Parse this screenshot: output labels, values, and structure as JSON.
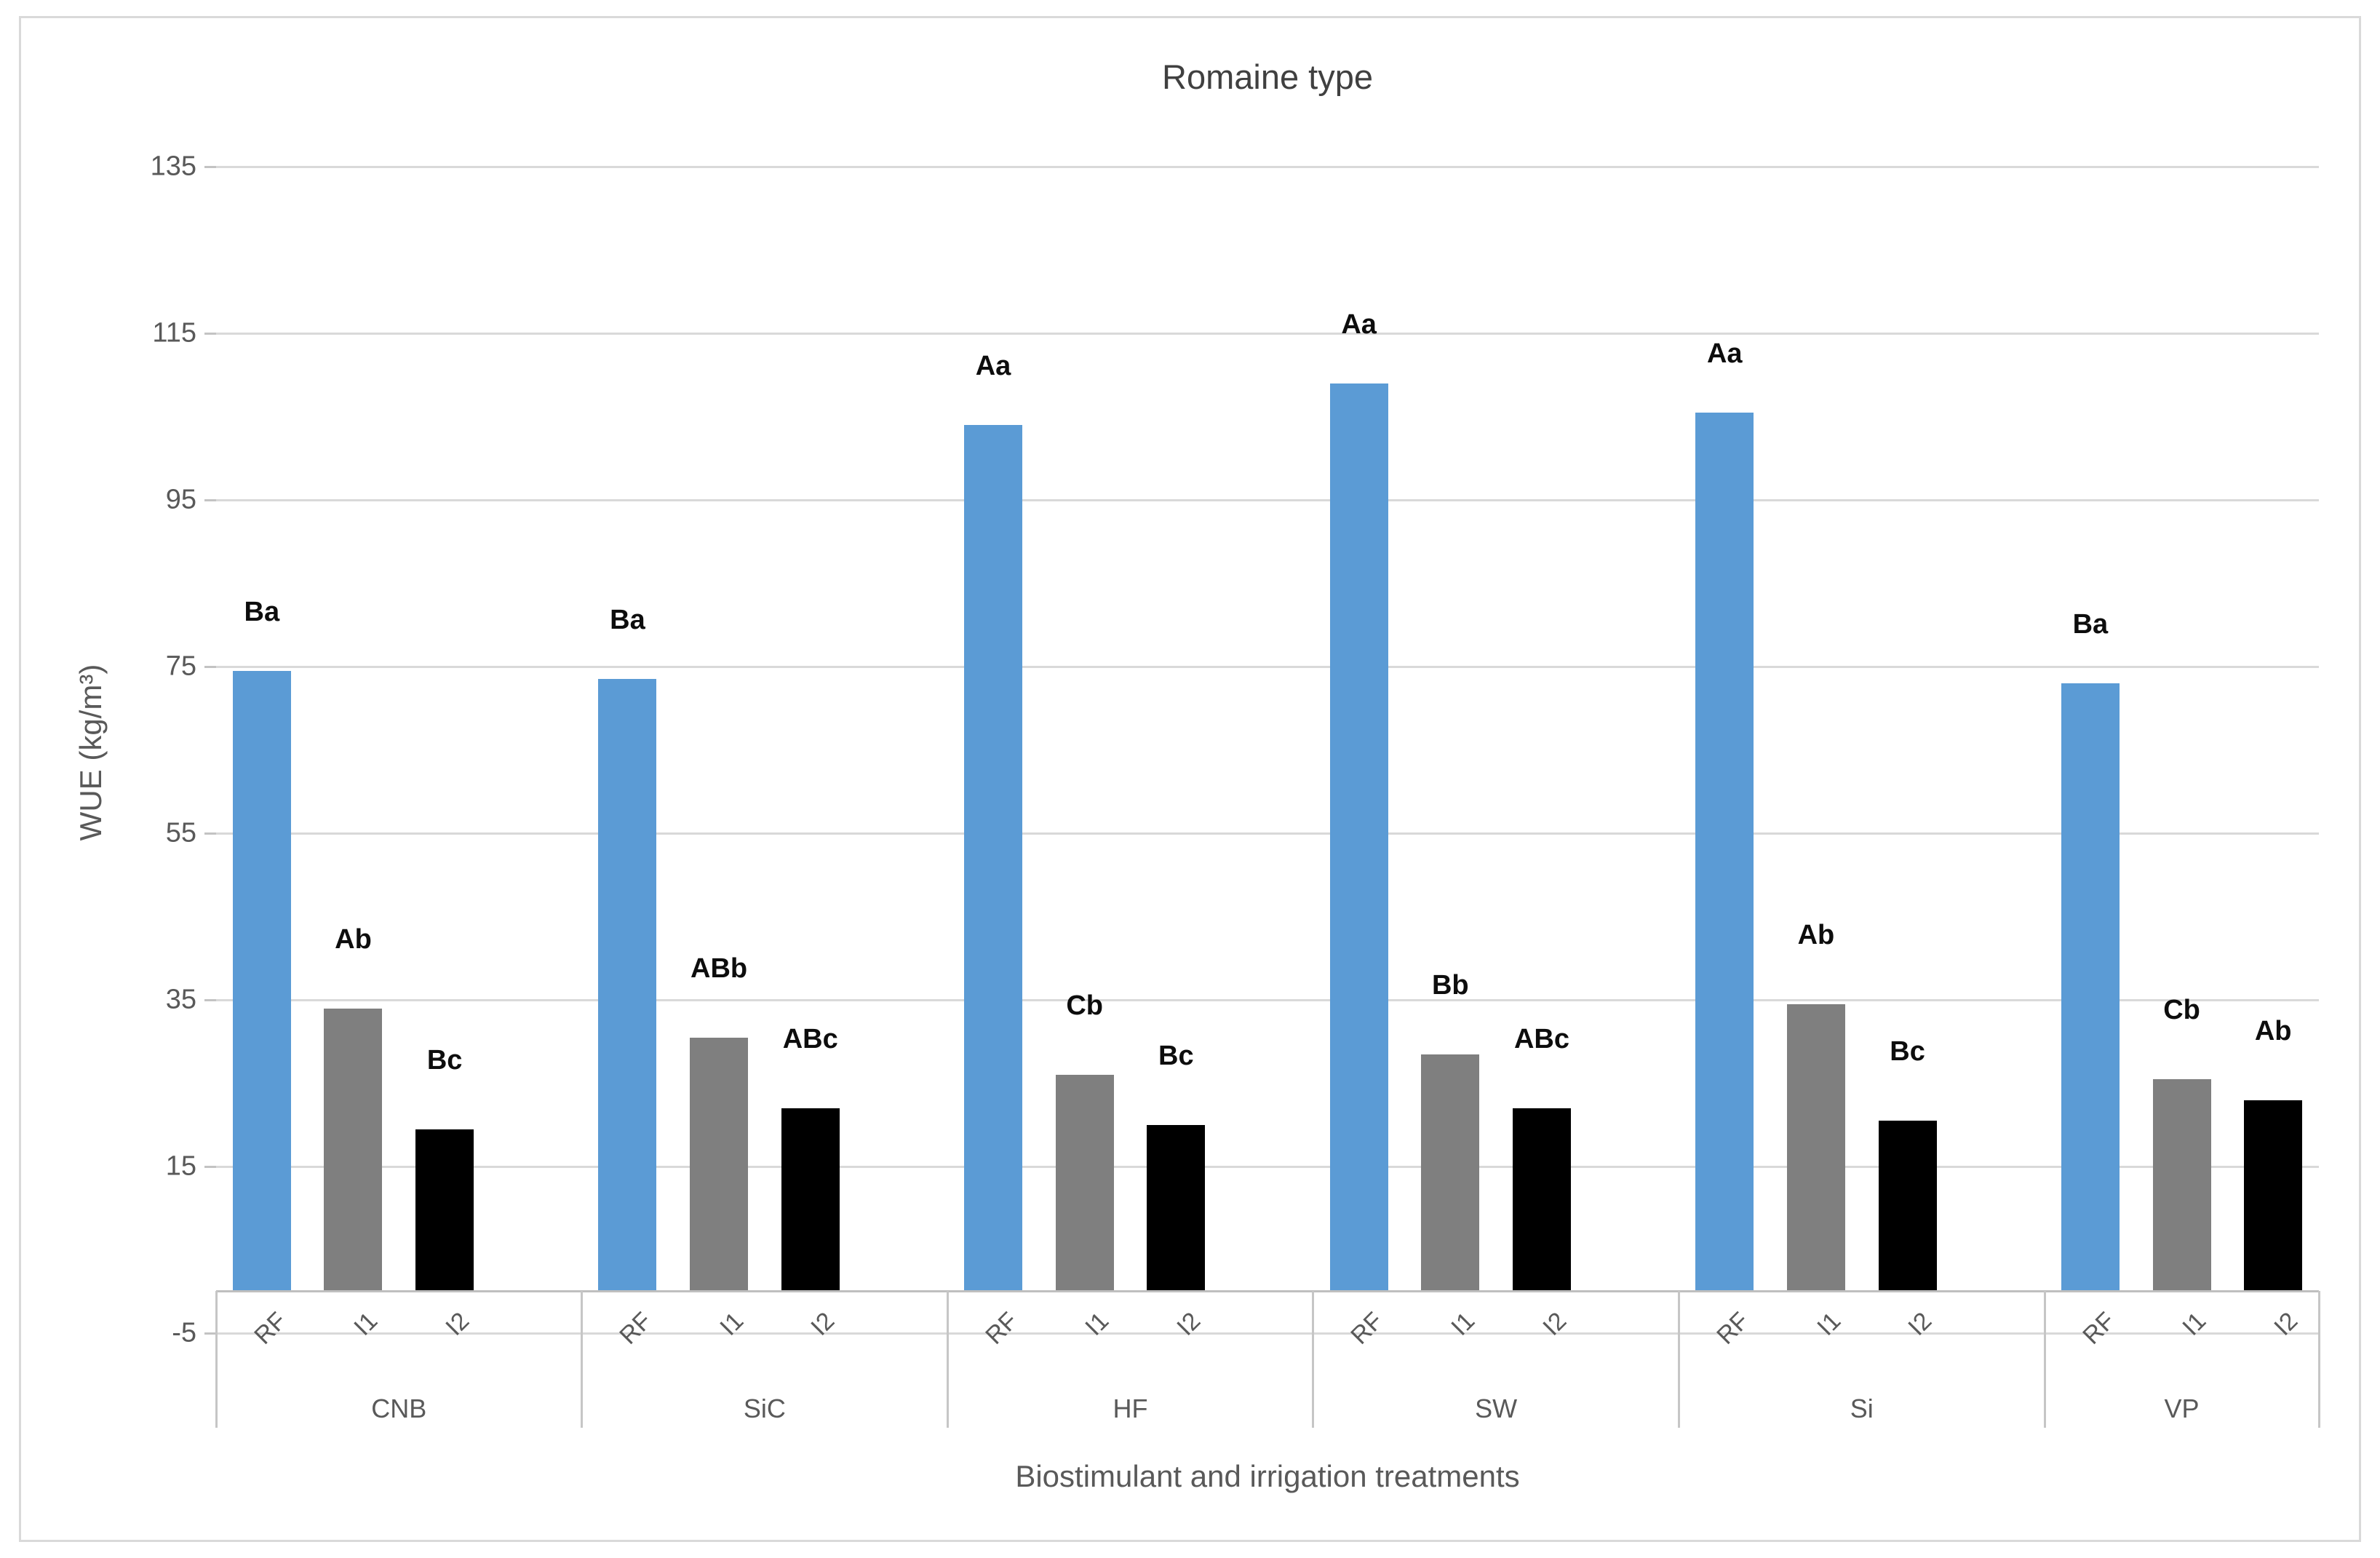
{
  "chart_data": {
    "type": "bar",
    "title": "Romaine type",
    "xlabel": "Biostimulant and irrigation treatments",
    "ylabel": "WUE (kg/m³)",
    "ylim": [
      -5,
      135
    ],
    "ytick_interval": 20,
    "yticks": [
      135,
      115,
      95,
      75,
      55,
      35,
      15,
      -5
    ],
    "grid": true,
    "legend_position": "none",
    "categories": [
      "CNB",
      "SiC",
      "HF",
      "SW",
      "Si",
      "VP"
    ],
    "subcategories": [
      "RF",
      "I1",
      "I2"
    ],
    "series": [
      {
        "name": "RF",
        "color": "#5B9BD5",
        "values": [
          74.5,
          73.5,
          104,
          109,
          105.5,
          73
        ],
        "labels": [
          "Ba",
          "Ba",
          "Aa",
          "Aa",
          "Aa",
          "Ba"
        ]
      },
      {
        "name": "I1",
        "color": "#7F7F7F",
        "values": [
          34,
          30.5,
          26,
          28.5,
          34.5,
          25.5
        ],
        "labels": [
          "Ab",
          "ABb",
          "Cb",
          "Bb",
          "Ab",
          "Cb"
        ]
      },
      {
        "name": "I2",
        "color": "#000000",
        "values": [
          19.5,
          22,
          20,
          22,
          20.5,
          23
        ],
        "labels": [
          "Bc",
          "ABc",
          "Bc",
          "ABc",
          "Bc",
          "Ab"
        ]
      }
    ],
    "colors": {
      "grid": "#D9D9D9",
      "axis_text": "#595959",
      "title_text": "#404040",
      "bar_blue": "#5B9BD5",
      "bar_gray": "#7F7F7F",
      "bar_black": "#000000"
    }
  }
}
